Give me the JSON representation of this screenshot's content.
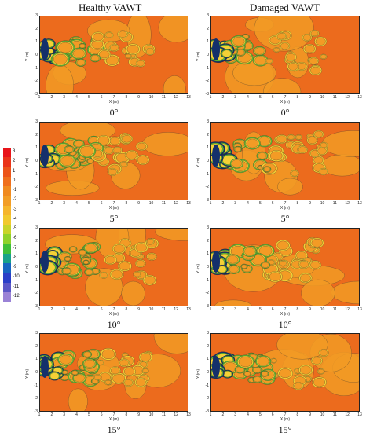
{
  "columns": [
    "Healthy VAWT",
    "Damaged VAWT"
  ],
  "angles": [
    "0°",
    "5°",
    "10°",
    "15°"
  ],
  "axes": {
    "xlabel": "X (m)",
    "ylabel": "Y (m)",
    "xticks": [
      "1",
      "2",
      "3",
      "4",
      "5",
      "6",
      "7",
      "8",
      "9",
      "10",
      "11",
      "12",
      "13"
    ],
    "yticks": [
      "3",
      "2",
      "1",
      "0",
      "-1",
      "-2",
      "-3"
    ]
  },
  "colorbar": {
    "labels": [
      "3",
      "2",
      "1",
      "0",
      "-1",
      "-2",
      "-3",
      "-4",
      "-5",
      "-6",
      "-7",
      "-8",
      "-9",
      "-10",
      "-11",
      "-12"
    ],
    "colors": [
      "#e8141a",
      "#ea3419",
      "#ec5419",
      "#ef6f1d",
      "#f08a20",
      "#f29d26",
      "#f5b52c",
      "#f1c92e",
      "#c8d42a",
      "#8fd22c",
      "#3fbf3a",
      "#18a28a",
      "#1766c0",
      "#2a3fc8",
      "#5b57c7",
      "#9a82d6"
    ]
  },
  "plot_colors": {
    "background": "#ec6b1d",
    "light_patch": "#f39b25",
    "yellow": "#f4d036",
    "green": "#5fbf35",
    "dark": "#14306b"
  }
}
